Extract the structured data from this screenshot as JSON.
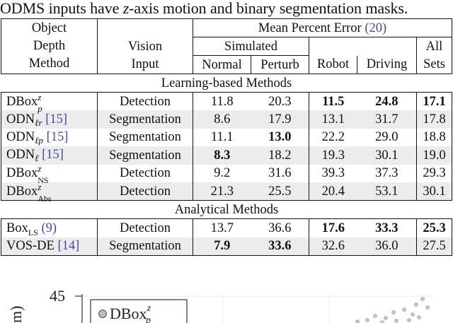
{
  "caption": {
    "before": "ODMS inputs have ",
    "var": "z",
    "after": "-axis motion and binary segmentation masks."
  },
  "table": {
    "header": {
      "object_depth_method": [
        "Object",
        "Depth",
        "Method"
      ],
      "vision_input": [
        "Vision",
        "Input"
      ],
      "mean_percent_error": "Mean Percent Error",
      "mpe_cite": "(20)",
      "simulated": "Simulated",
      "normal": "Normal",
      "perturb": "Perturb",
      "robot": "Robot",
      "driving": "Driving",
      "all_sets": [
        "All",
        "Sets"
      ]
    },
    "section_learning": "Learning-based Methods",
    "section_analytical": "Analytical Methods",
    "learning_rows": [
      {
        "method": "DBox",
        "sub": "p",
        "sup": "z",
        "cite": "",
        "input": "Detection",
        "normal": "11.8",
        "perturb": "20.3",
        "robot": "11.5",
        "driving": "24.8",
        "all": "17.1"
      },
      {
        "method": "ODN",
        "sub": "ℓr",
        "sup": "",
        "cite": "[15]",
        "input": "Segmentation",
        "normal": "8.6",
        "perturb": "17.9",
        "robot": "13.1",
        "driving": "31.7",
        "all": "17.8"
      },
      {
        "method": "ODN",
        "sub": "ℓp",
        "sup": "",
        "cite": "[15]",
        "input": "Segmentation",
        "normal": "11.1",
        "perturb": "13.0",
        "robot": "22.2",
        "driving": "29.0",
        "all": "18.8"
      },
      {
        "method": "ODN",
        "sub": "ℓ",
        "sup": "",
        "cite": "[15]",
        "input": "Segmentation",
        "normal": "8.3",
        "perturb": "18.2",
        "robot": "19.3",
        "driving": "30.1",
        "all": "19.0"
      },
      {
        "method": "DBox",
        "sub": "NS",
        "sup": "z",
        "cite": "",
        "input": "Detection",
        "normal": "9.2",
        "perturb": "31.6",
        "robot": "39.3",
        "driving": "37.3",
        "all": "29.3"
      },
      {
        "method": "DBox",
        "sub": "Abs",
        "sup": "z",
        "cite": "",
        "input": "Detection",
        "normal": "21.3",
        "perturb": "25.5",
        "robot": "20.4",
        "driving": "53.1",
        "all": "30.1"
      }
    ],
    "analytical_rows": [
      {
        "method": "Box",
        "sub": "LS",
        "sup": "",
        "cite": "(9)",
        "input": "Detection",
        "normal": "13.7",
        "perturb": "36.6",
        "robot": "17.6",
        "driving": "33.3",
        "all": "25.3"
      },
      {
        "method": "VOS-DE",
        "sub": "",
        "sup": "",
        "cite": "[14]",
        "input": "Segmentation",
        "normal": "7.9",
        "perturb": "33.6",
        "robot": "32.6",
        "driving": "36.0",
        "all": "27.5"
      }
    ]
  },
  "chart": {
    "y_tick_top": "45",
    "ylabel_fragment": "m)",
    "legend_label": "DBox",
    "legend_sup": "z",
    "legend_sub": "p"
  },
  "colors": {
    "citation": "#4a4a9a",
    "shaded_row": "#ececec",
    "scatter_point": "#c8c8c8"
  }
}
